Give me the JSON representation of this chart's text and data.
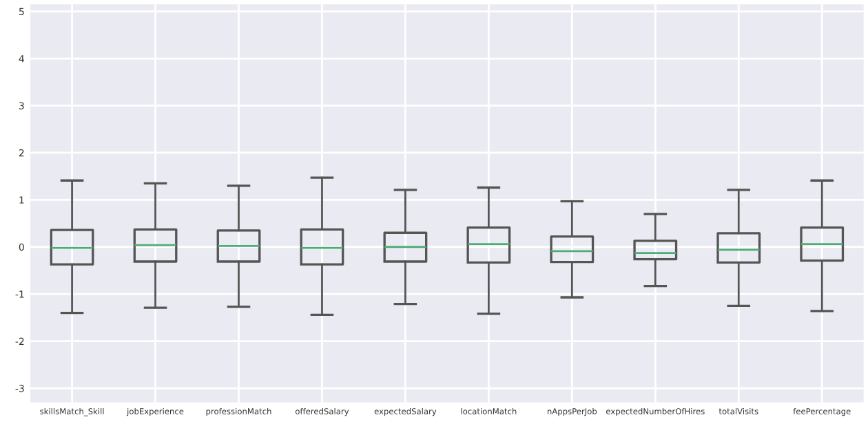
{
  "chart_data": {
    "type": "box",
    "categories": [
      "skillsMatch_Skill",
      "jobExperience",
      "professionMatch",
      "offeredSalary",
      "expectedSalary",
      "locationMatch",
      "nAppsPerJob",
      "expectedNumberOfHires",
      "totalVisits",
      "feePercentage"
    ],
    "boxes": [
      {
        "low": -1.4,
        "q1": -0.37,
        "median": -0.02,
        "q3": 0.36,
        "high": 1.41
      },
      {
        "low": -1.29,
        "q1": -0.31,
        "median": 0.04,
        "q3": 0.37,
        "high": 1.35
      },
      {
        "low": -1.27,
        "q1": -0.31,
        "median": 0.02,
        "q3": 0.35,
        "high": 1.3
      },
      {
        "low": -1.44,
        "q1": -0.37,
        "median": -0.02,
        "q3": 0.37,
        "high": 1.47
      },
      {
        "low": -1.21,
        "q1": -0.31,
        "median": 0.0,
        "q3": 0.3,
        "high": 1.21
      },
      {
        "low": -1.42,
        "q1": -0.33,
        "median": 0.06,
        "q3": 0.41,
        "high": 1.26
      },
      {
        "low": -1.07,
        "q1": -0.32,
        "median": -0.09,
        "q3": 0.22,
        "high": 0.97
      },
      {
        "low": -0.83,
        "q1": -0.26,
        "median": -0.13,
        "q3": 0.13,
        "high": 0.7
      },
      {
        "low": -1.25,
        "q1": -0.33,
        "median": -0.06,
        "q3": 0.29,
        "high": 1.21
      },
      {
        "low": -1.36,
        "q1": -0.29,
        "median": 0.06,
        "q3": 0.41,
        "high": 1.41
      }
    ],
    "color": "#555555",
    "ylim": [
      -3.3,
      5.15
    ],
    "yticks": [
      -3,
      -2,
      -1,
      0,
      1,
      2,
      3,
      4,
      5
    ],
    "grid": true
  }
}
